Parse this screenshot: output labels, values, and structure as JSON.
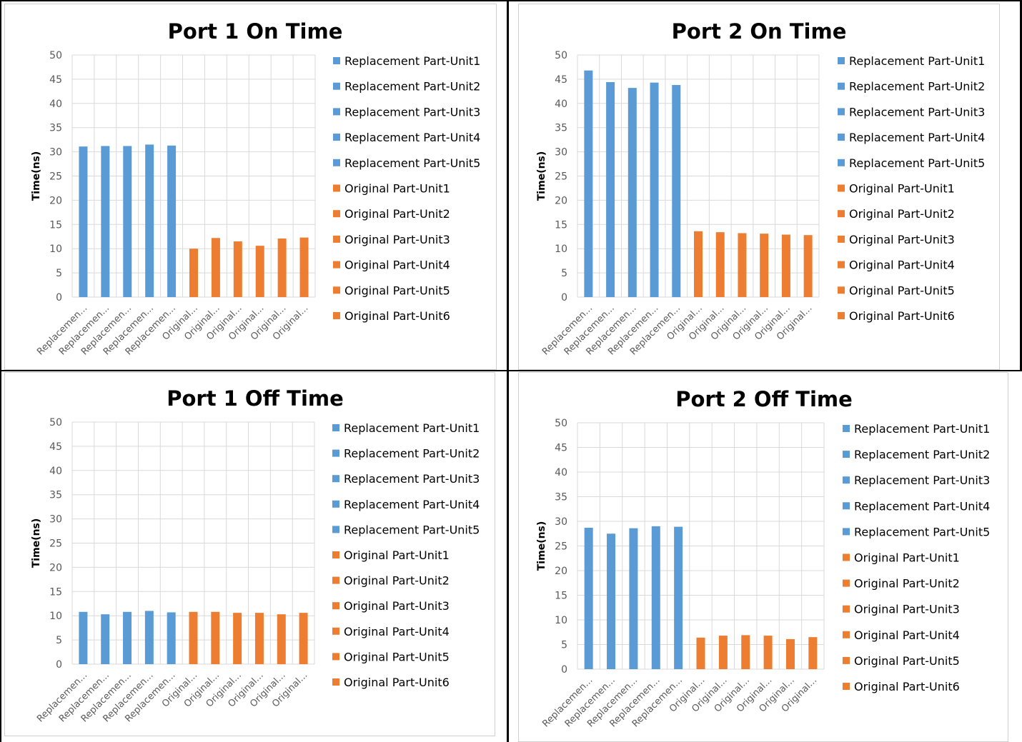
{
  "colors": {
    "replacement": "#5B9BD5",
    "original": "#ED7D31",
    "grid": "#D9D9D9"
  },
  "legend_entries": [
    "Replacement Part-Unit1",
    "Replacement Part-Unit2",
    "Replacement Part-Unit3",
    "Replacement Part-Unit4",
    "Replacement Part-Unit5",
    "Original Part-Unit1",
    "Original Part-Unit2",
    "Original Part-Unit3",
    "Original Part-Unit4",
    "Original Part-Unit5",
    "Original Part-Unit6"
  ],
  "category_labels": [
    "Replacemen...",
    "Replacemen...",
    "Replacemen...",
    "Replacemen...",
    "Replacemen...",
    "Original...",
    "Original...",
    "Original...",
    "Original...",
    "Original...",
    "Original..."
  ],
  "chart_data": [
    {
      "type": "bar",
      "title": "Port 1 On Time",
      "ylabel": "Time(ns)",
      "ylim": [
        0,
        50
      ],
      "yticks": [
        0,
        5,
        10,
        15,
        20,
        25,
        30,
        35,
        40,
        45,
        50
      ],
      "grid": true,
      "legend_position": "right",
      "values": [
        31.1,
        31.2,
        31.2,
        31.5,
        31.3,
        10.0,
        12.2,
        11.5,
        10.6,
        12.1,
        12.3
      ]
    },
    {
      "type": "bar",
      "title": "Port 2 On Time",
      "ylabel": "Time(ns)",
      "ylim": [
        0,
        50
      ],
      "yticks": [
        0,
        5,
        10,
        15,
        20,
        25,
        30,
        35,
        40,
        45,
        50
      ],
      "grid": true,
      "legend_position": "right",
      "values": [
        46.8,
        44.4,
        43.2,
        44.3,
        43.8,
        13.6,
        13.4,
        13.2,
        13.1,
        12.9,
        12.8
      ]
    },
    {
      "type": "bar",
      "title": "Port 1 Off Time",
      "ylabel": "Time(ns)",
      "ylim": [
        0,
        50
      ],
      "yticks": [
        0,
        5,
        10,
        15,
        20,
        25,
        30,
        35,
        40,
        45,
        50
      ],
      "grid": true,
      "legend_position": "right",
      "values": [
        10.8,
        10.3,
        10.8,
        11.0,
        10.7,
        10.8,
        10.8,
        10.6,
        10.6,
        10.3,
        10.6
      ]
    },
    {
      "type": "bar",
      "title": "Port 2 Off Time",
      "ylabel": "Time(ns)",
      "ylim": [
        0,
        50
      ],
      "yticks": [
        0,
        5,
        10,
        15,
        20,
        25,
        30,
        35,
        40,
        45,
        50
      ],
      "grid": true,
      "legend_position": "right",
      "values": [
        28.7,
        27.5,
        28.6,
        29.0,
        28.9,
        6.4,
        6.8,
        6.9,
        6.8,
        6.1,
        6.5
      ]
    }
  ]
}
